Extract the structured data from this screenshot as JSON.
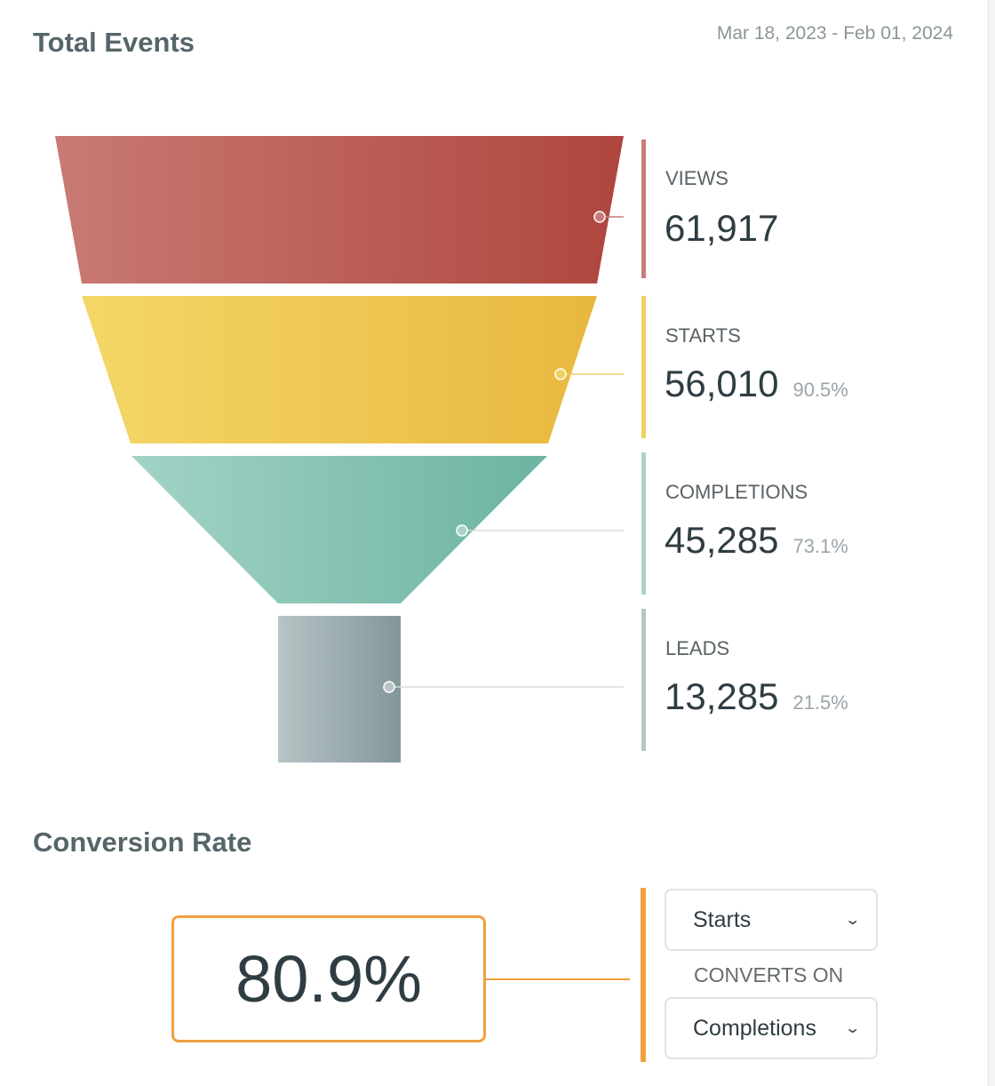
{
  "header": {
    "title": "Total Events",
    "date_range": "Mar 18, 2023 - Feb 01, 2024"
  },
  "funnel": {
    "stages": [
      {
        "label": "VIEWS",
        "value": "61,917",
        "percent": "",
        "color": "#c97d78"
      },
      {
        "label": "STARTS",
        "value": "56,010",
        "percent": "90.5%",
        "color": "#f0d060"
      },
      {
        "label": "COMPLETIONS",
        "value": "45,285",
        "percent": "73.1%",
        "color": "#a8d4c8"
      },
      {
        "label": "LEADS",
        "value": "13,285",
        "percent": "21.5%",
        "color": "#b8c4c6"
      }
    ]
  },
  "conversion": {
    "title": "Conversion Rate",
    "rate": "80.9%",
    "accent": "#f0a040",
    "from_select": "Starts",
    "converts_on_label": "CONVERTS ON",
    "to_select": "Completions"
  }
}
